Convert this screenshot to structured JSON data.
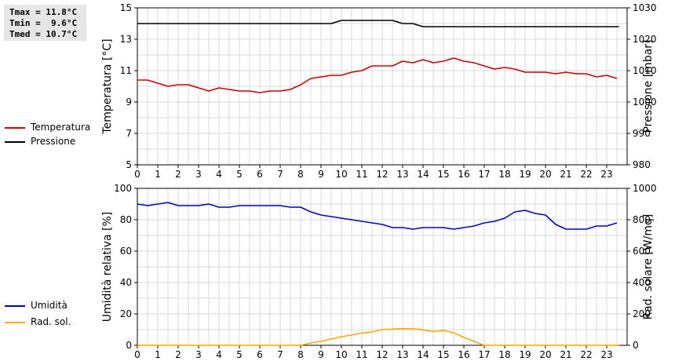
{
  "stats": {
    "tmax": "Tmax = 11.8°C",
    "tmin": "Tmin =  9.6°C",
    "tmed": "Tmed = 10.7°C"
  },
  "legend_top": [
    {
      "label": "Temperatura",
      "color": "#cc0000"
    },
    {
      "label": "Pressione",
      "color": "#000000"
    }
  ],
  "legend_bottom": [
    {
      "label": "Umidità",
      "color": "#0000cc"
    },
    {
      "label": "Rad. sol.",
      "color": "#ffa500"
    }
  ],
  "chart_data": [
    {
      "type": "line",
      "x_ticks": [
        "0",
        "1",
        "2",
        "3",
        "4",
        "5",
        "6",
        "7",
        "8",
        "9",
        "10",
        "11",
        "12",
        "13",
        "14",
        "15",
        "16",
        "17",
        "18",
        "19",
        "20",
        "21",
        "22",
        "23"
      ],
      "xlim": [
        0,
        24
      ],
      "ylabel": "Temperatura [°C]",
      "ylim": [
        5,
        15
      ],
      "y_ticks": [
        "5",
        "7",
        "9",
        "11",
        "13",
        "15"
      ],
      "y2label": "Pressione [mbar]",
      "y2lim": [
        980,
        1030
      ],
      "y2_ticks": [
        "980",
        "990",
        "1000",
        "1010",
        "1020",
        "1030"
      ],
      "grid": true,
      "series": [
        {
          "name": "Temperatura",
          "axis": "left",
          "color": "#cc0000",
          "x": [
            0,
            0.5,
            1,
            1.5,
            2,
            2.5,
            3,
            3.5,
            4,
            4.5,
            5,
            5.5,
            6,
            6.5,
            7,
            7.5,
            8,
            8.5,
            9,
            9.5,
            10,
            10.5,
            11,
            11.5,
            12,
            12.5,
            13,
            13.5,
            14,
            14.5,
            15,
            15.5,
            16,
            16.5,
            17,
            17.5,
            18,
            18.5,
            19,
            19.5,
            20,
            20.5,
            21,
            21.5,
            22,
            22.5,
            23,
            23.5
          ],
          "y": [
            10.4,
            10.4,
            10.2,
            10.0,
            10.1,
            10.1,
            9.9,
            9.7,
            9.9,
            9.8,
            9.7,
            9.7,
            9.6,
            9.7,
            9.7,
            9.8,
            10.1,
            10.5,
            10.6,
            10.7,
            10.7,
            10.9,
            11.0,
            11.3,
            11.3,
            11.3,
            11.6,
            11.5,
            11.7,
            11.5,
            11.6,
            11.8,
            11.6,
            11.5,
            11.3,
            11.1,
            11.2,
            11.1,
            10.9,
            10.9,
            10.9,
            10.8,
            10.9,
            10.8,
            10.8,
            10.6,
            10.7,
            10.5
          ]
        },
        {
          "name": "Pressione",
          "axis": "right",
          "color": "#000000",
          "x": [
            0,
            9.5,
            10,
            12.5,
            13,
            13.5,
            14,
            23.6
          ],
          "y": [
            1025,
            1025,
            1026,
            1026,
            1025,
            1025,
            1024,
            1024
          ]
        }
      ]
    },
    {
      "type": "line",
      "x_ticks": [
        "0",
        "1",
        "2",
        "3",
        "4",
        "5",
        "6",
        "7",
        "8",
        "9",
        "10",
        "11",
        "12",
        "13",
        "14",
        "15",
        "16",
        "17",
        "18",
        "19",
        "20",
        "21",
        "22",
        "23"
      ],
      "xlim": [
        0,
        24
      ],
      "ylabel": "Umidità relativa [%]",
      "ylim": [
        0,
        100
      ],
      "y_ticks": [
        "0",
        "20",
        "40",
        "60",
        "80",
        "100"
      ],
      "y2label": "Rad. solare [W/mq]",
      "y2lim": [
        0,
        1000
      ],
      "y2_ticks": [
        "0",
        "200",
        "400",
        "600",
        "800",
        "1000"
      ],
      "grid": true,
      "series": [
        {
          "name": "Umidità",
          "axis": "left",
          "color": "#0000cc",
          "x": [
            0,
            0.5,
            1,
            1.5,
            2,
            2.5,
            3,
            3.5,
            4,
            4.5,
            5,
            5.5,
            6,
            6.5,
            7,
            7.5,
            8,
            8.5,
            9,
            9.5,
            10,
            10.5,
            11,
            11.5,
            12,
            12.5,
            13,
            13.5,
            14,
            14.5,
            15,
            15.5,
            16,
            16.5,
            17,
            17.5,
            18,
            18.5,
            19,
            19.5,
            20,
            20.5,
            21,
            21.5,
            22,
            22.5,
            23,
            23.5
          ],
          "y": [
            90,
            89,
            90,
            91,
            89,
            89,
            89,
            90,
            88,
            88,
            89,
            89,
            89,
            89,
            89,
            88,
            88,
            85,
            83,
            82,
            81,
            80,
            79,
            78,
            77,
            75,
            75,
            74,
            75,
            75,
            75,
            74,
            75,
            76,
            78,
            79,
            81,
            85,
            86,
            84,
            83,
            77,
            74,
            74,
            74,
            76,
            76,
            78
          ]
        },
        {
          "name": "Rad. sol.",
          "axis": "right",
          "color": "#ffa500",
          "x": [
            0,
            8,
            8.5,
            9,
            9.5,
            10,
            10.5,
            11,
            11.5,
            12,
            12.5,
            13,
            13.5,
            14,
            14.5,
            15,
            15.5,
            16,
            16.5,
            17,
            23.6
          ],
          "y": [
            0,
            0,
            15,
            25,
            40,
            55,
            65,
            78,
            85,
            100,
            103,
            106,
            105,
            98,
            88,
            95,
            80,
            50,
            25,
            0,
            0
          ]
        }
      ]
    }
  ]
}
